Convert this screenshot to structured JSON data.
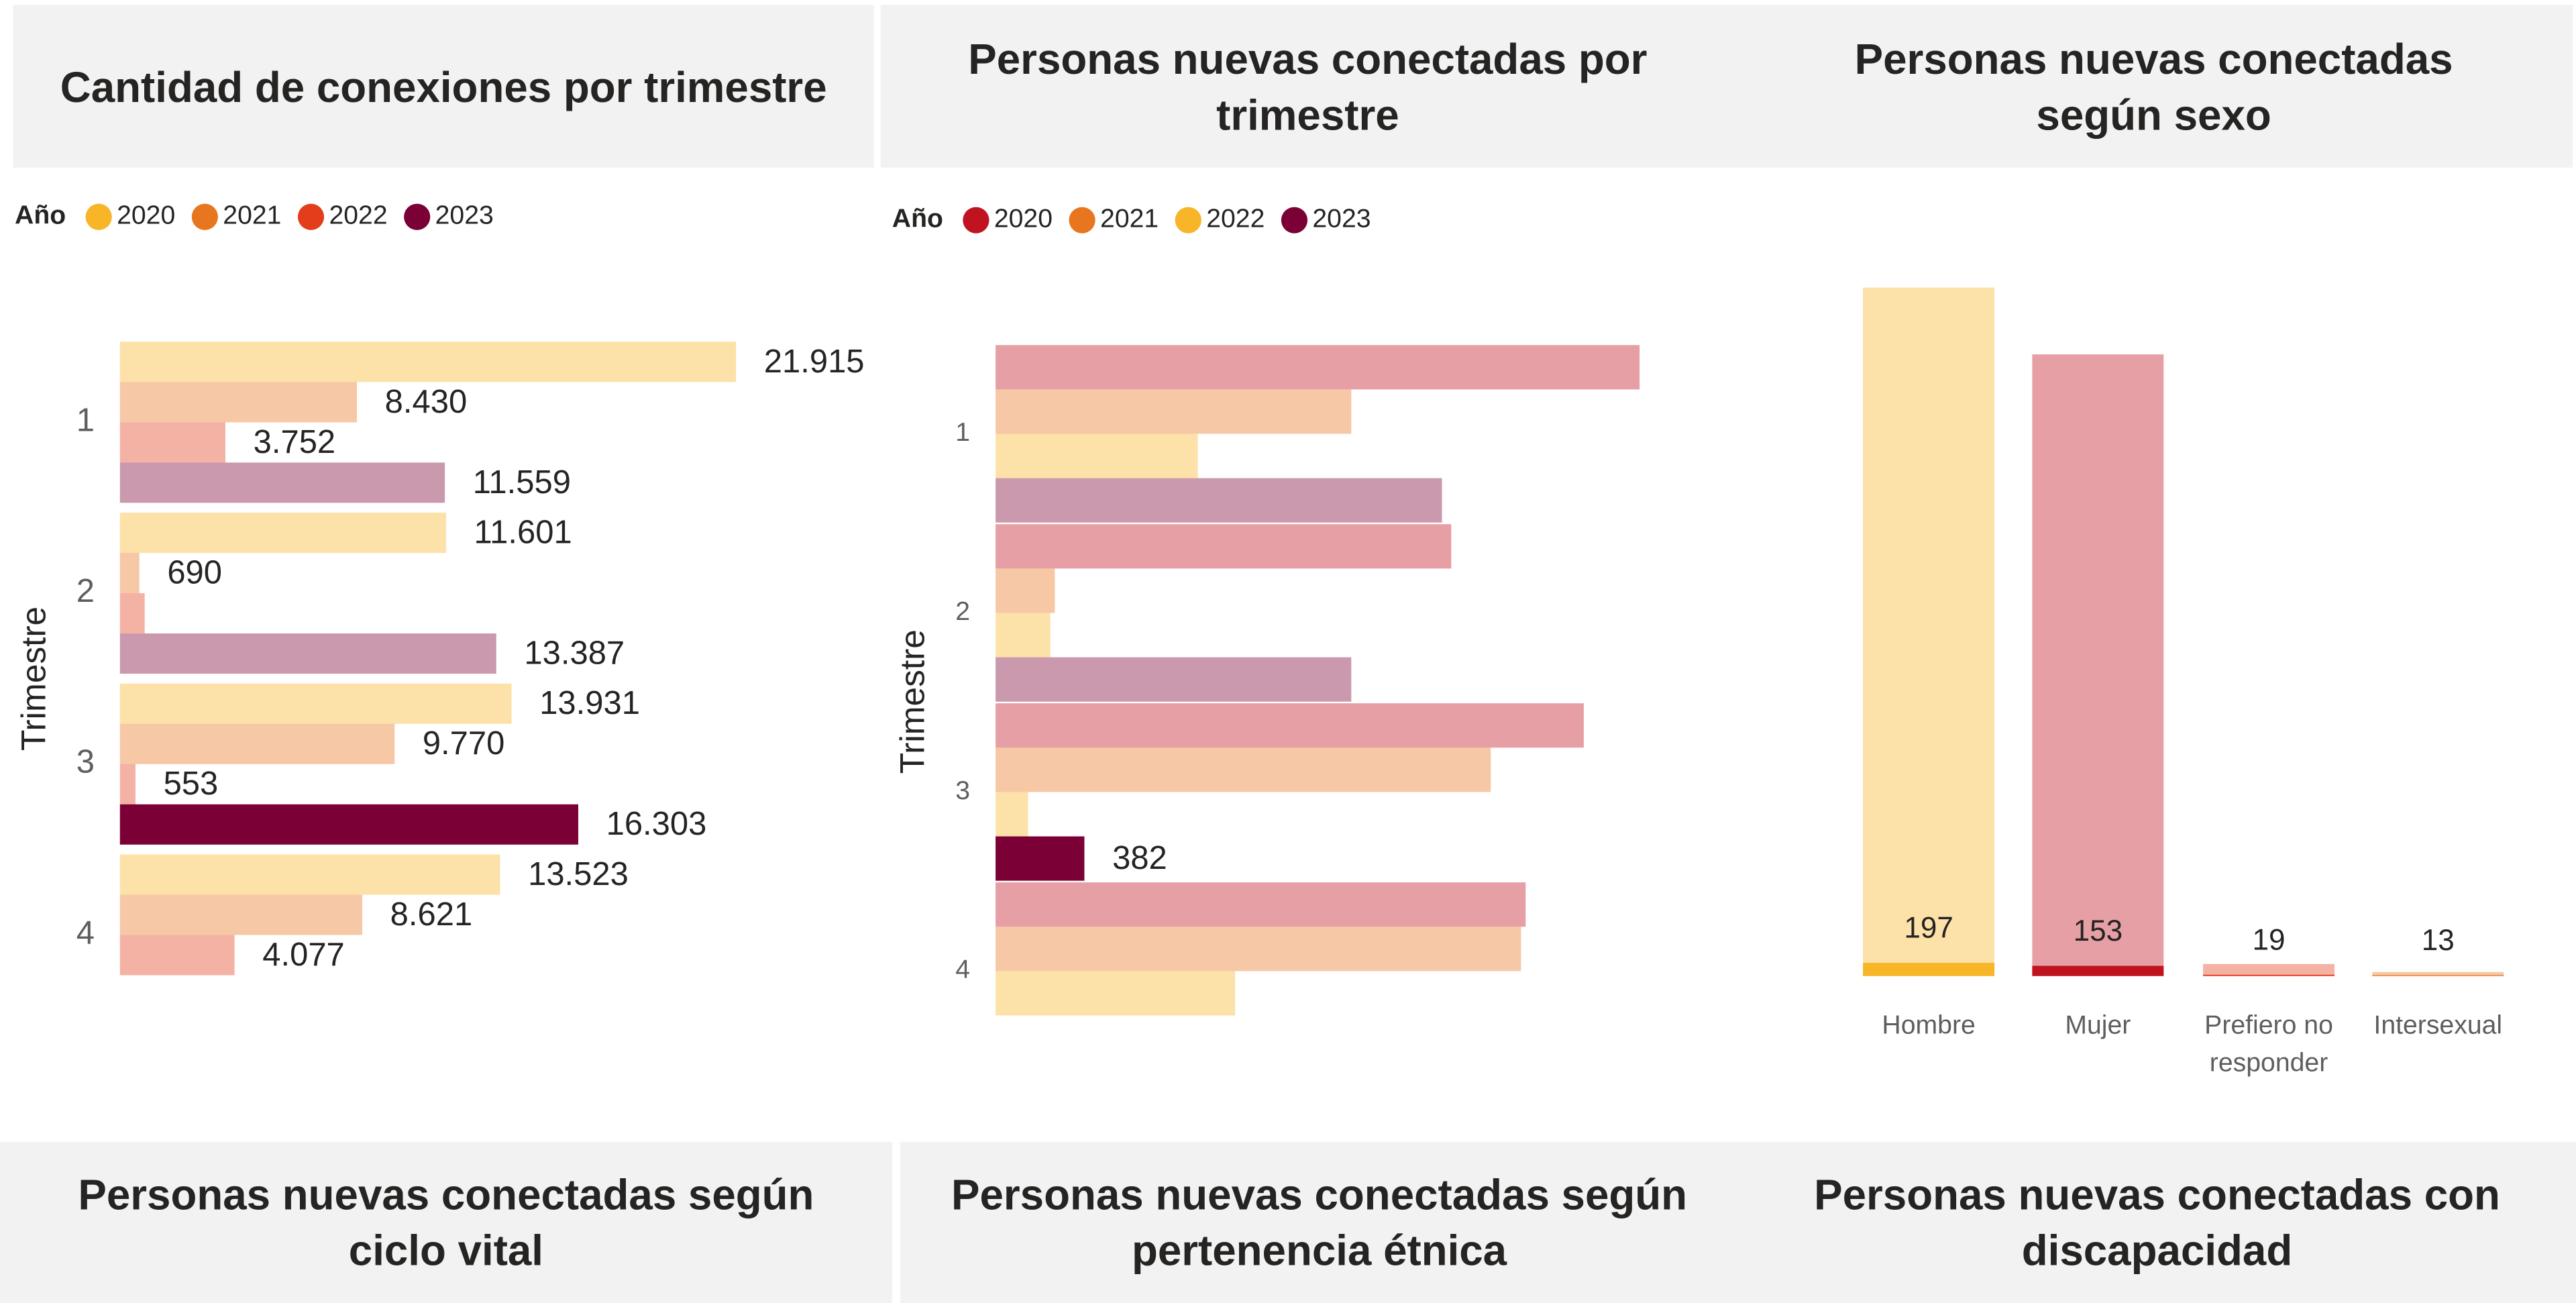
{
  "chart_data": [
    {
      "type": "hbar",
      "title": "Cantidad de conexiones por trimestre",
      "legend_title": "Año",
      "y_label": "Trimestre",
      "categories": [
        "1",
        "2",
        "3",
        "4"
      ],
      "series": [
        {
          "name": "2020",
          "color": "#f7b527",
          "values": [
            21915,
            11601,
            13931,
            13523
          ],
          "value_labels": [
            "21.915",
            "11.601",
            "13.931",
            "13.523"
          ]
        },
        {
          "name": "2021",
          "color": "#e8761e",
          "values": [
            8430,
            690,
            9770,
            8621
          ],
          "value_labels": [
            "8.430",
            "690",
            "9.770",
            "8.621"
          ]
        },
        {
          "name": "2022",
          "color": "#e33e1c",
          "values": [
            3752,
            880,
            553,
            4077
          ],
          "value_labels": [
            "3.752",
            null,
            "553",
            "4.077"
          ]
        },
        {
          "name": "2023",
          "color": "#7b0035",
          "values": [
            11559,
            13387,
            16303,
            null
          ],
          "value_labels": [
            "11.559",
            "13.387",
            "16.303",
            null
          ]
        }
      ],
      "highlight": {
        "series": 3,
        "category": 2
      }
    },
    {
      "type": "hbar",
      "title": "Personas nuevas conectadas por trimestre",
      "legend_title": "Año",
      "y_label": "Trimestre",
      "categories": [
        "1",
        "2",
        "3",
        "4"
      ],
      "series": [
        {
          "name": "2020",
          "color": "#c0121f",
          "values": [
            2770,
            1960,
            2530,
            2280
          ],
          "value_labels": [
            null,
            null,
            null,
            null
          ]
        },
        {
          "name": "2021",
          "color": "#e8761e",
          "values": [
            1530,
            255,
            2130,
            2260
          ],
          "value_labels": [
            null,
            null,
            null,
            null
          ]
        },
        {
          "name": "2022",
          "color": "#f7b527",
          "values": [
            870,
            235,
            140,
            1030
          ],
          "value_labels": [
            null,
            null,
            null,
            null
          ]
        },
        {
          "name": "2023",
          "color": "#7b0035",
          "values": [
            1920,
            1530,
            382,
            null
          ],
          "value_labels": [
            null,
            null,
            "382",
            null
          ]
        }
      ],
      "highlight": {
        "series": 3,
        "category": 2
      }
    },
    {
      "type": "vbar",
      "title": "Personas nuevas conectadas según sexo",
      "categories": [
        "Hombre",
        "Mujer",
        "Prefiero no responder",
        "Intersexual"
      ],
      "values": [
        197,
        153,
        19,
        13
      ],
      "totals": [
        10300,
        9300,
        180,
        60
      ],
      "colors": [
        "#f7b527",
        "#c0121f",
        "#e33e1c",
        "#e8761e"
      ]
    }
  ],
  "more_panels": [
    {
      "title": "Personas nuevas conectadas según ciclo vital"
    },
    {
      "title": "Personas nuevas conectadas según pertenencia étnica"
    },
    {
      "title": "Personas nuevas conectadas con discapacidad"
    }
  ]
}
